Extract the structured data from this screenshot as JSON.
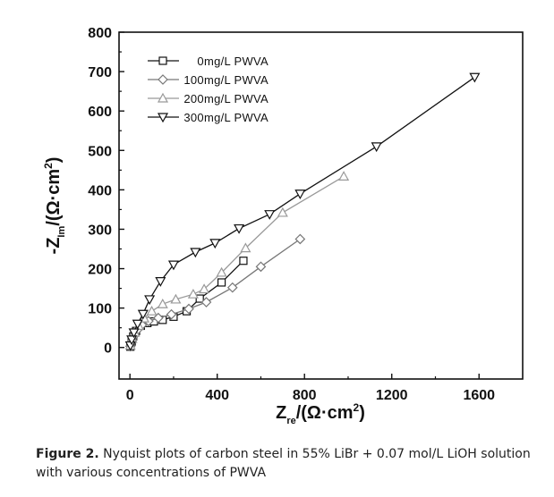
{
  "chart_data": {
    "type": "scatter",
    "xlabel": {
      "main": "Z",
      "sub": "re",
      "unit": "/(Ω·cm",
      "sup": "2",
      "close": ")"
    },
    "ylabel": {
      "main": "-Z",
      "sub": "Im",
      "unit": "/(Ω·cm",
      "sup": "2",
      "close": ")"
    },
    "xlim": [
      -50,
      1800
    ],
    "ylim": [
      -80,
      800
    ],
    "xticks": [
      0,
      400,
      800,
      1200,
      1600
    ],
    "yticks": [
      0,
      100,
      200,
      300,
      400,
      500,
      600,
      700,
      800
    ],
    "grid": false,
    "legend_position": "top-left",
    "series": [
      {
        "name": "0mg/L PWVA",
        "marker": "square",
        "color": "#111111",
        "points": [
          [
            2,
            2
          ],
          [
            8,
            15
          ],
          [
            15,
            28
          ],
          [
            28,
            42
          ],
          [
            50,
            55
          ],
          [
            80,
            62
          ],
          [
            110,
            66
          ],
          [
            150,
            70
          ],
          [
            200,
            78
          ],
          [
            260,
            92
          ],
          [
            320,
            124
          ],
          [
            420,
            165
          ],
          [
            520,
            220
          ]
        ]
      },
      {
        "name": "100mg/L PWVA",
        "marker": "diamond",
        "color": "#777777",
        "points": [
          [
            2,
            3
          ],
          [
            10,
            18
          ],
          [
            20,
            30
          ],
          [
            35,
            45
          ],
          [
            55,
            57
          ],
          [
            85,
            67
          ],
          [
            130,
            75
          ],
          [
            190,
            84
          ],
          [
            270,
            98
          ],
          [
            350,
            115
          ],
          [
            470,
            152
          ],
          [
            600,
            205
          ],
          [
            780,
            275
          ]
        ]
      },
      {
        "name": "200mg/L PWVA",
        "marker": "triangle-up",
        "color": "#999999",
        "points": [
          [
            2,
            5
          ],
          [
            10,
            22
          ],
          [
            22,
            38
          ],
          [
            40,
            55
          ],
          [
            65,
            74
          ],
          [
            100,
            92
          ],
          [
            150,
            110
          ],
          [
            210,
            122
          ],
          [
            290,
            135
          ],
          [
            340,
            148
          ],
          [
            420,
            190
          ],
          [
            530,
            252
          ],
          [
            700,
            342
          ],
          [
            980,
            434
          ]
        ]
      },
      {
        "name": "300mg/L PWVA",
        "marker": "triangle-down",
        "color": "#111111",
        "points": [
          [
            2,
            5
          ],
          [
            8,
            20
          ],
          [
            18,
            38
          ],
          [
            35,
            60
          ],
          [
            60,
            85
          ],
          [
            90,
            122
          ],
          [
            140,
            168
          ],
          [
            200,
            210
          ],
          [
            300,
            242
          ],
          [
            390,
            265
          ],
          [
            500,
            302
          ],
          [
            640,
            338
          ],
          [
            780,
            390
          ],
          [
            1130,
            510
          ],
          [
            1580,
            686
          ]
        ]
      }
    ]
  },
  "caption": {
    "label": "Figure 2.",
    "text": " Nyquist plots of carbon steel in 55% LiBr + 0.07 mol/L LiOH solution with various concentrations of PWVA"
  }
}
